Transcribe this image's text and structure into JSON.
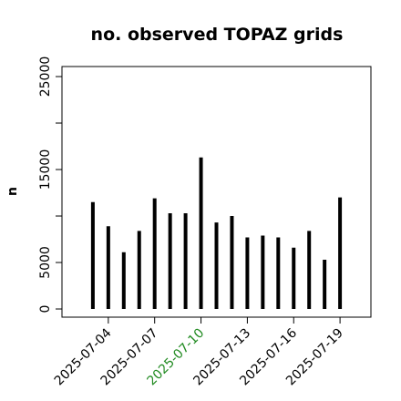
{
  "chart_data": {
    "type": "bar",
    "title": "no. observed TOPAZ grids",
    "ylabel": "n",
    "x": [
      "2025-07-03",
      "2025-07-04",
      "2025-07-05",
      "2025-07-06",
      "2025-07-07",
      "2025-07-08",
      "2025-07-09",
      "2025-07-10",
      "2025-07-11",
      "2025-07-12",
      "2025-07-13",
      "2025-07-14",
      "2025-07-15",
      "2025-07-16",
      "2025-07-17",
      "2025-07-18",
      "2025-07-19"
    ],
    "values": [
      11500,
      8900,
      6100,
      8400,
      11900,
      10300,
      10300,
      16300,
      9300,
      10000,
      7700,
      7900,
      7700,
      6600,
      8400,
      5300,
      12000
    ],
    "color": "#000000",
    "xlim": [
      "2025-07-01",
      "2025-07-21"
    ],
    "xticks": [
      "2025-07-04",
      "2025-07-07",
      "2025-07-10",
      "2025-07-13",
      "2025-07-16",
      "2025-07-19"
    ],
    "highlight_xtick": "2025-07-10",
    "highlight_color": "#228b22",
    "ylim": [
      -880,
      26080
    ],
    "yticks": [
      0,
      5000,
      15000,
      25000
    ],
    "ytick_marks": [
      0,
      5000,
      10000,
      15000,
      20000,
      25000
    ]
  }
}
